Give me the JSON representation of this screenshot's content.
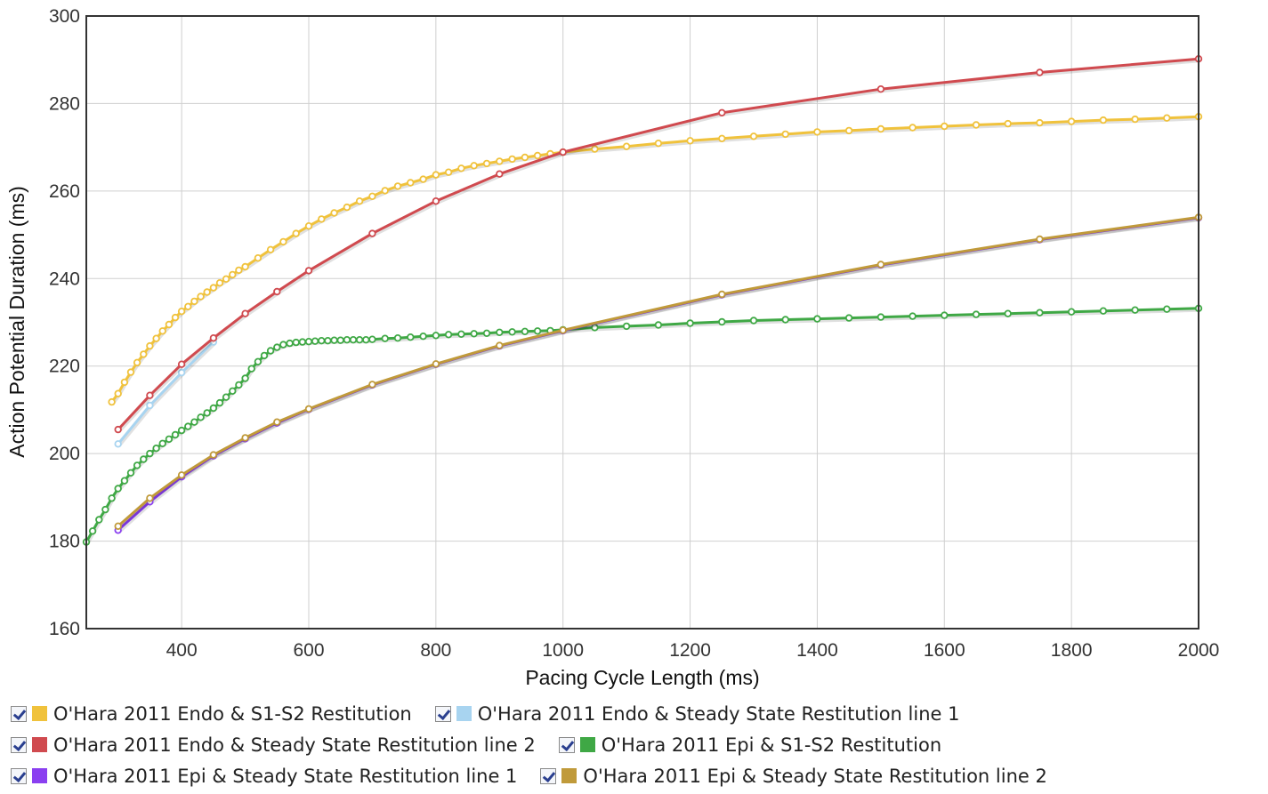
{
  "chart_data": {
    "type": "line",
    "title": "",
    "xlabel": "Pacing Cycle Length (ms)",
    "ylabel": "Action Potential Duration (ms)",
    "xlim": [
      250,
      2000
    ],
    "ylim": [
      160,
      300
    ],
    "xticks": [
      400,
      600,
      800,
      1000,
      1200,
      1400,
      1600,
      1800,
      2000
    ],
    "yticks": [
      160,
      180,
      200,
      220,
      240,
      260,
      280,
      300
    ],
    "grid": true,
    "legend_position": "bottom",
    "series": [
      {
        "name": "O'Hara 2011 Endo & S1-S2 Restitution",
        "color": "#f0c23c",
        "x": [
          290,
          300,
          310,
          320,
          330,
          340,
          350,
          360,
          370,
          380,
          390,
          400,
          410,
          420,
          430,
          440,
          450,
          460,
          470,
          480,
          490,
          500,
          520,
          540,
          560,
          580,
          600,
          620,
          640,
          660,
          680,
          700,
          720,
          740,
          760,
          780,
          800,
          820,
          840,
          860,
          880,
          900,
          920,
          940,
          960,
          980,
          1000,
          1050,
          1100,
          1150,
          1200,
          1250,
          1300,
          1350,
          1400,
          1450,
          1500,
          1550,
          1600,
          1650,
          1700,
          1750,
          1800,
          1850,
          1900,
          1950,
          2000
        ],
        "y": [
          211.8,
          213.7,
          216.3,
          218.6,
          220.8,
          222.7,
          224.6,
          226.3,
          228.0,
          229.5,
          231.1,
          232.5,
          233.6,
          234.8,
          235.9,
          236.9,
          237.9,
          239.0,
          239.9,
          240.9,
          241.9,
          242.7,
          244.7,
          246.6,
          248.4,
          250.3,
          252.0,
          253.6,
          255.0,
          256.3,
          257.7,
          258.8,
          260.1,
          261.1,
          261.9,
          262.7,
          263.7,
          264.3,
          265.2,
          265.8,
          266.3,
          266.8,
          267.3,
          267.7,
          268.1,
          268.5,
          268.9,
          269.6,
          270.2,
          270.9,
          271.5,
          272.0,
          272.5,
          273.0,
          273.5,
          273.8,
          274.2,
          274.5,
          274.8,
          275.1,
          275.4,
          275.6,
          275.9,
          276.2,
          276.4,
          276.7,
          277.0
        ]
      },
      {
        "name": "O'Hara 2011 Endo & Steady State Restitution line 1",
        "color": "#a8d4f0",
        "x": [
          300,
          350,
          400,
          450
        ],
        "y": [
          202.2,
          211.0,
          218.5,
          225.5
        ]
      },
      {
        "name": "O'Hara 2011 Endo & Steady State Restitution line 2",
        "color": "#d04a4f",
        "x": [
          300,
          350,
          400,
          450,
          500,
          550,
          600,
          700,
          800,
          900,
          1000,
          1250,
          1500,
          1750,
          2000
        ],
        "y": [
          205.5,
          213.3,
          220.4,
          226.4,
          232.0,
          237.0,
          241.8,
          250.3,
          257.7,
          263.9,
          268.9,
          277.9,
          283.3,
          287.1,
          290.2
        ]
      },
      {
        "name": "O'Hara 2011 Epi & S1-S2 Restitution",
        "color": "#3fa845",
        "x": [
          250,
          260,
          270,
          280,
          290,
          300,
          310,
          320,
          330,
          340,
          350,
          360,
          370,
          380,
          390,
          400,
          410,
          420,
          430,
          440,
          450,
          460,
          470,
          480,
          490,
          500,
          510,
          520,
          530,
          540,
          550,
          560,
          570,
          580,
          590,
          600,
          610,
          620,
          630,
          640,
          650,
          660,
          670,
          680,
          690,
          700,
          720,
          740,
          760,
          780,
          800,
          820,
          840,
          860,
          880,
          900,
          920,
          940,
          960,
          980,
          1000,
          1050,
          1100,
          1150,
          1200,
          1250,
          1300,
          1350,
          1400,
          1450,
          1500,
          1550,
          1600,
          1650,
          1700,
          1750,
          1800,
          1850,
          1900,
          1950,
          2000
        ],
        "y": [
          179.8,
          182.3,
          184.9,
          187.2,
          189.8,
          192.0,
          193.8,
          195.6,
          197.3,
          198.7,
          200.0,
          201.2,
          202.3,
          203.3,
          204.3,
          205.3,
          206.2,
          207.2,
          208.3,
          209.3,
          210.4,
          211.6,
          212.9,
          214.3,
          215.7,
          217.2,
          219.4,
          221.0,
          222.4,
          223.5,
          224.3,
          224.9,
          225.2,
          225.4,
          225.5,
          225.6,
          225.7,
          225.8,
          225.8,
          225.9,
          225.9,
          226.0,
          226.0,
          226.0,
          226.0,
          226.1,
          226.3,
          226.4,
          226.6,
          226.8,
          227.0,
          227.2,
          227.3,
          227.4,
          227.5,
          227.7,
          227.8,
          227.9,
          228.0,
          228.1,
          228.3,
          228.8,
          229.1,
          229.4,
          229.8,
          230.1,
          230.4,
          230.6,
          230.8,
          231.0,
          231.2,
          231.4,
          231.6,
          231.8,
          232.0,
          232.2,
          232.4,
          232.6,
          232.8,
          233.0,
          233.2
        ]
      },
      {
        "name": "O'Hara 2011 Epi & Steady State Restitution line 1",
        "color": "#8a3ff0",
        "x": [
          300,
          350,
          400,
          450,
          500,
          550,
          600,
          700,
          800,
          900,
          1000,
          1250,
          1500,
          1750,
          2000
        ],
        "y": [
          182.5,
          189.0,
          194.7,
          199.5,
          203.4,
          207.0,
          210.1,
          215.7,
          220.4,
          224.6,
          228.1,
          236.3,
          243.1,
          248.9,
          253.9
        ]
      },
      {
        "name": "O'Hara 2011 Epi & Steady State Restitution line 2",
        "color": "#c09a3a",
        "x": [
          300,
          350,
          400,
          450,
          500,
          550,
          600,
          700,
          800,
          900,
          1000,
          1250,
          1500,
          1750,
          2000
        ],
        "y": [
          183.4,
          189.8,
          195.1,
          199.7,
          203.6,
          207.2,
          210.2,
          215.8,
          220.5,
          224.7,
          228.2,
          236.4,
          243.2,
          249.0,
          254.0
        ]
      }
    ]
  },
  "legend": {
    "items": [
      {
        "label": "O'Hara 2011 Endo & S1-S2 Restitution",
        "color": "#f0c23c"
      },
      {
        "label": "O'Hara 2011 Endo & Steady State Restitution line 1",
        "color": "#a8d4f0"
      },
      {
        "label": "O'Hara 2011 Endo & Steady State Restitution line 2",
        "color": "#d04a4f"
      },
      {
        "label": "O'Hara 2011 Epi & S1-S2 Restitution",
        "color": "#3fa845"
      },
      {
        "label": "O'Hara 2011 Epi & Steady State Restitution line 1",
        "color": "#8a3ff0"
      },
      {
        "label": "O'Hara 2011 Epi & Steady State Restitution line 2",
        "color": "#c09a3a"
      }
    ]
  }
}
